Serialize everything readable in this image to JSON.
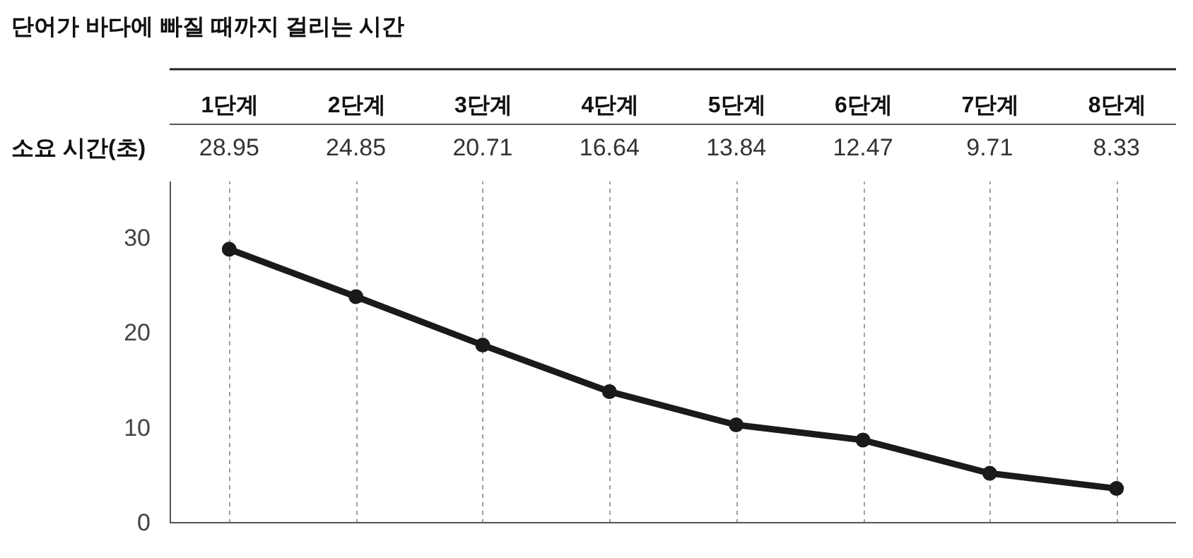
{
  "chart_data": {
    "type": "line",
    "title": "단어가 바다에 빠질 때까지 걸리는 시간",
    "categories": [
      "1단계",
      "2단계",
      "3단계",
      "4단계",
      "5단계",
      "6단계",
      "7단계",
      "8단계"
    ],
    "series": [
      {
        "color": "#1a1a1a",
        "values": [
          28.8,
          23.8,
          18.7,
          13.8,
          10.3,
          8.7,
          5.2,
          3.6
        ]
      }
    ],
    "ylim": [
      0,
      36
    ],
    "yticks": [
      0,
      10,
      20,
      30
    ],
    "grid": "x",
    "marker": "circle",
    "line_style": "solid",
    "annotations": [
      "소요 시간(초)",
      "28.95",
      "24.85",
      "20.71",
      "16.64",
      "13.84",
      "12.47",
      "9.71",
      "8.33"
    ]
  }
}
